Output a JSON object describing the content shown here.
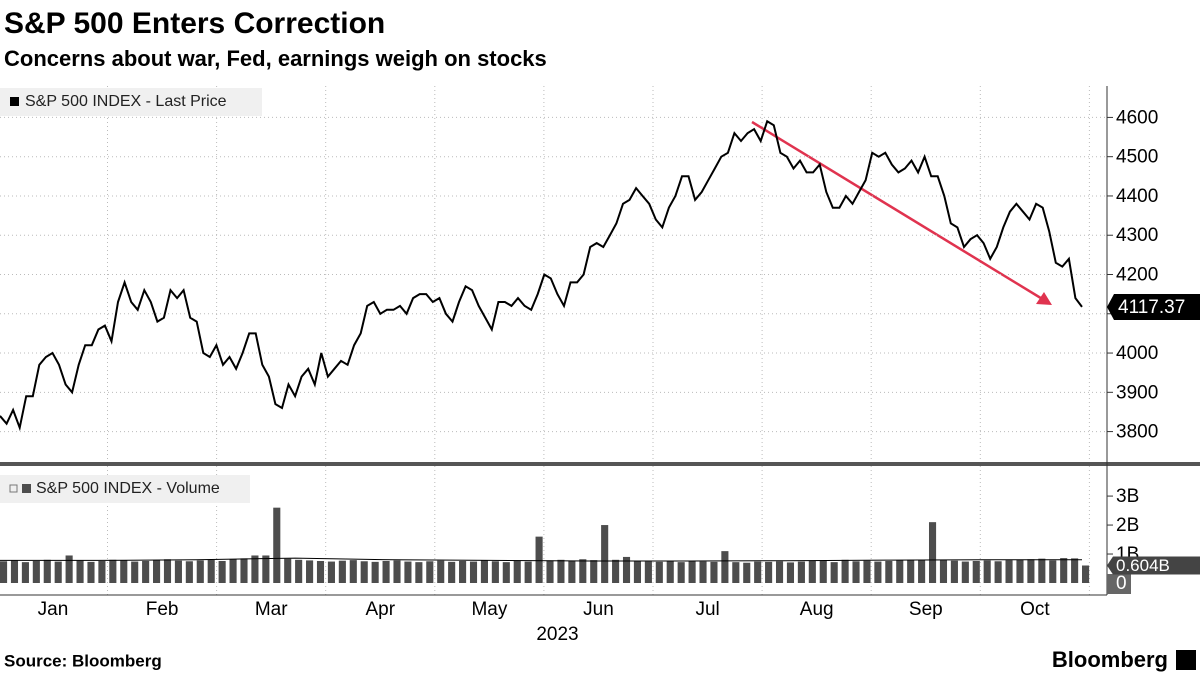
{
  "chart_data": [
    {
      "type": "line",
      "title": "S&P 500 Enters Correction",
      "subtitle": "Concerns about war, Fed, earnings weigh on stocks",
      "source": "Source: Bloomberg",
      "logo": "Bloomberg",
      "series": [
        {
          "name": "S&P 500 INDEX - Last Price",
          "color": "#000000",
          "values": [
            3840,
            3820,
            3855,
            3810,
            3890,
            3890,
            3970,
            3990,
            4000,
            3970,
            3920,
            3900,
            3970,
            4020,
            4020,
            4060,
            4070,
            4030,
            4130,
            4180,
            4130,
            4110,
            4160,
            4130,
            4080,
            4090,
            4160,
            4140,
            4160,
            4090,
            4080,
            4000,
            3990,
            4020,
            3970,
            3990,
            3960,
            4000,
            4050,
            4050,
            3970,
            3940,
            3870,
            3860,
            3920,
            3890,
            3940,
            3960,
            3920,
            4000,
            3940,
            3960,
            3980,
            3970,
            4020,
            4050,
            4120,
            4130,
            4100,
            4110,
            4110,
            4120,
            4100,
            4140,
            4150,
            4150,
            4130,
            4140,
            4100,
            4080,
            4130,
            4170,
            4160,
            4120,
            4090,
            4060,
            4130,
            4130,
            4120,
            4140,
            4120,
            4110,
            4150,
            4200,
            4190,
            4150,
            4120,
            4180,
            4180,
            4200,
            4270,
            4280,
            4270,
            4300,
            4330,
            4380,
            4390,
            4420,
            4400,
            4380,
            4340,
            4320,
            4370,
            4400,
            4450,
            4450,
            4390,
            4410,
            4440,
            4470,
            4500,
            4510,
            4560,
            4540,
            4560,
            4570,
            4540,
            4590,
            4580,
            4510,
            4500,
            4470,
            4490,
            4460,
            4460,
            4480,
            4410,
            4370,
            4370,
            4400,
            4380,
            4410,
            4440,
            4510,
            4500,
            4510,
            4480,
            4460,
            4470,
            4490,
            4460,
            4500,
            4450,
            4450,
            4400,
            4330,
            4320,
            4270,
            4290,
            4300,
            4280,
            4240,
            4270,
            4320,
            4360,
            4380,
            4360,
            4340,
            4380,
            4370,
            4310,
            4230,
            4220,
            4240,
            4140,
            4117.37
          ]
        }
      ],
      "ylim": [
        3720,
        4680
      ],
      "yticks": [
        3800,
        3900,
        4000,
        4100,
        4200,
        4300,
        4400,
        4500,
        4600
      ],
      "grid": true
    },
    {
      "type": "bar",
      "series": [
        {
          "name": "S&P 500 INDEX - Volume",
          "color": "#4d4d4d",
          "last_label": "0.604B",
          "values": [
            0.75,
            0.78,
            0.72,
            0.76,
            0.8,
            0.74,
            0.95,
            0.77,
            0.73,
            0.76,
            0.8,
            0.78,
            0.74,
            0.76,
            0.79,
            0.82,
            0.77,
            0.75,
            0.78,
            0.8,
            0.76,
            0.82,
            0.85,
            0.95,
            0.95,
            2.6,
            0.84,
            0.8,
            0.78,
            0.76,
            0.74,
            0.77,
            0.79,
            0.75,
            0.73,
            0.76,
            0.78,
            0.74,
            0.72,
            0.75,
            0.77,
            0.73,
            0.76,
            0.74,
            0.78,
            0.75,
            0.72,
            0.76,
            0.74,
            1.6,
            0.78,
            0.8,
            0.76,
            0.82,
            0.79,
            2.0,
            0.8,
            0.9,
            0.77,
            0.74,
            0.73,
            0.75,
            0.72,
            0.76,
            0.74,
            0.73,
            1.1,
            0.72,
            0.7,
            0.74,
            0.73,
            0.75,
            0.71,
            0.74,
            0.76,
            0.78,
            0.72,
            0.8,
            0.75,
            0.77,
            0.74,
            0.76,
            0.79,
            0.8,
            0.78,
            2.1,
            0.8,
            0.77,
            0.74,
            0.76,
            0.78,
            0.75,
            0.79,
            0.8,
            0.82,
            0.84,
            0.78,
            0.86,
            0.85,
            0.604
          ]
        },
        {
          "color": "#000000",
          "values": [
            0.78,
            0.78,
            0.8,
            0.86,
            0.8,
            0.78,
            0.76,
            0.76,
            0.77,
            0.79,
            0.8,
            0.8
          ]
        }
      ],
      "ylim": [
        0,
        3.9
      ],
      "yticks": [
        0,
        {
          "value": 1,
          "label": "1B"
        },
        {
          "value": 2,
          "label": "2B"
        },
        {
          "value": 3,
          "label": "3B"
        }
      ],
      "x_labels": [
        "Jan",
        "Feb",
        "Mar",
        "Apr",
        "May",
        "Jun",
        "Jul",
        "Aug",
        "Sep",
        "Oct"
      ],
      "x_year": "2023"
    }
  ]
}
